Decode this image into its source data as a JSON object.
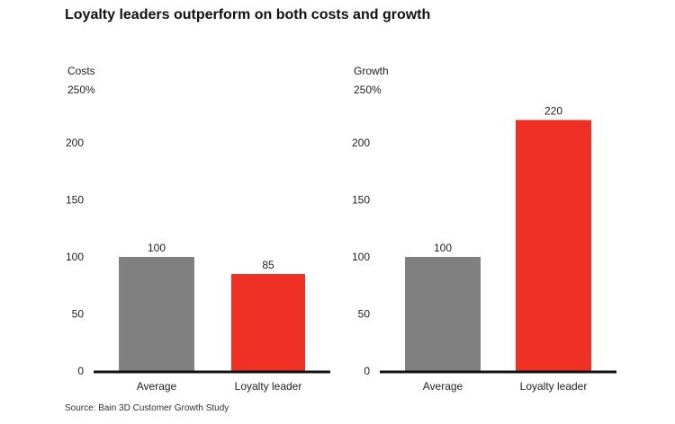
{
  "title": "Loyalty leaders outperform on both costs and growth",
  "source": "Source: Bain 3D Customer Growth Study",
  "colors": {
    "average": "#808080",
    "leader": "#EE3124",
    "axis": "#111111",
    "text": "#222222"
  },
  "chart_data": [
    {
      "type": "bar",
      "panel_label": "Costs",
      "top_tick_label": "250%",
      "categories": [
        "Average",
        "Loyalty leader"
      ],
      "values": [
        100,
        85
      ],
      "data_labels": [
        "100",
        "85"
      ],
      "yticks": [
        0,
        50,
        100,
        150,
        200
      ],
      "ylim": [
        0,
        250
      ],
      "bar_colors": [
        "#808080",
        "#EE3124"
      ],
      "grid": false
    },
    {
      "type": "bar",
      "panel_label": "Growth",
      "top_tick_label": "250%",
      "categories": [
        "Average",
        "Loyalty leader"
      ],
      "values": [
        100,
        220
      ],
      "data_labels": [
        "100",
        "220"
      ],
      "yticks": [
        0,
        50,
        100,
        150,
        200
      ],
      "ylim": [
        0,
        250
      ],
      "bar_colors": [
        "#808080",
        "#EE3124"
      ],
      "grid": false
    }
  ]
}
